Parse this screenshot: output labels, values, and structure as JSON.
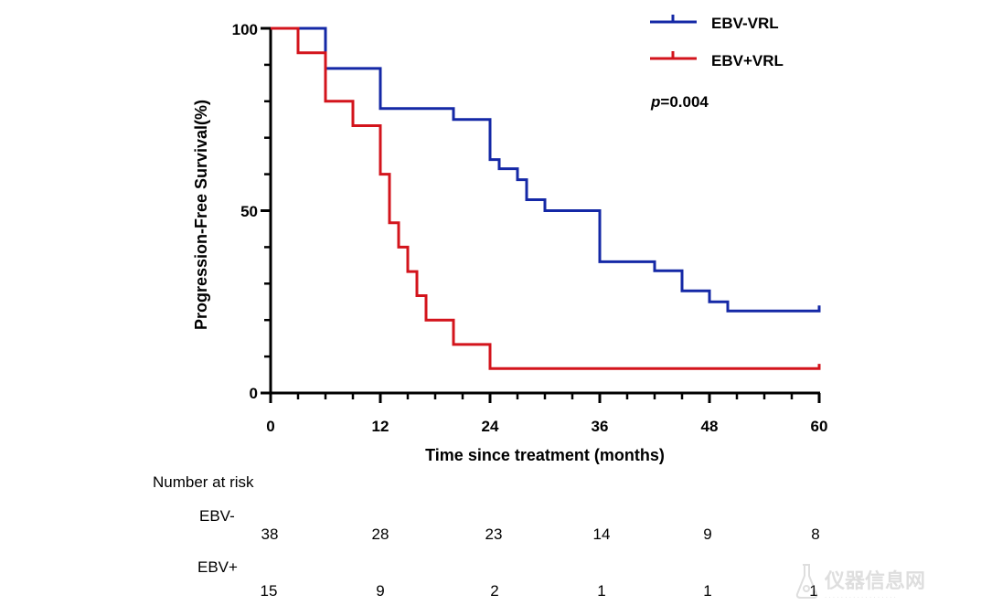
{
  "chart_data": {
    "type": "kaplan-meier step line",
    "ylabel": "Progression-Free Survival(%)",
    "xlabel": "Time since treatment (months)",
    "xlim": [
      0,
      60
    ],
    "ylim": [
      0,
      100
    ],
    "x_ticks": [
      "0",
      "12",
      "24",
      "36",
      "48",
      "60"
    ],
    "x_tick_values": [
      0,
      12,
      24,
      36,
      48,
      60
    ],
    "y_ticks": [
      "0",
      "50",
      "100"
    ],
    "y_tick_values": [
      0,
      50,
      100
    ],
    "annotation_prefix": "p",
    "annotation_value": "=0.004",
    "series": [
      {
        "name": "EBV-VRL",
        "color": "#1428a6",
        "points": [
          [
            0,
            100
          ],
          [
            6,
            100
          ],
          [
            6,
            89
          ],
          [
            12,
            89
          ],
          [
            12,
            78
          ],
          [
            20,
            78
          ],
          [
            20,
            75
          ],
          [
            24,
            75
          ],
          [
            24,
            64
          ],
          [
            25,
            64
          ],
          [
            25,
            61.5
          ],
          [
            27,
            61.5
          ],
          [
            27,
            58.5
          ],
          [
            28,
            58.5
          ],
          [
            28,
            53
          ],
          [
            30,
            53
          ],
          [
            30,
            50
          ],
          [
            36,
            50
          ],
          [
            36,
            36
          ],
          [
            42,
            36
          ],
          [
            42,
            33.5
          ],
          [
            45,
            33.5
          ],
          [
            45,
            28
          ],
          [
            48,
            28
          ],
          [
            48,
            25
          ],
          [
            50,
            25
          ],
          [
            50,
            22.5
          ],
          [
            60,
            22.5
          ],
          [
            60,
            24
          ]
        ]
      },
      {
        "name": "EBV+VRL",
        "color": "#d3141c",
        "points": [
          [
            0,
            100
          ],
          [
            3,
            100
          ],
          [
            3,
            93.3
          ],
          [
            6,
            93.3
          ],
          [
            6,
            80
          ],
          [
            9,
            80
          ],
          [
            9,
            73.3
          ],
          [
            12,
            73.3
          ],
          [
            12,
            60
          ],
          [
            13,
            60
          ],
          [
            13,
            46.7
          ],
          [
            14,
            46.7
          ],
          [
            14,
            40
          ],
          [
            15,
            40
          ],
          [
            15,
            33.3
          ],
          [
            16,
            33.3
          ],
          [
            16,
            26.7
          ],
          [
            17,
            26.7
          ],
          [
            17,
            20
          ],
          [
            20,
            20
          ],
          [
            20,
            13.3
          ],
          [
            24,
            13.3
          ],
          [
            24,
            6.7
          ],
          [
            60,
            6.7
          ],
          [
            60,
            8
          ]
        ]
      }
    ]
  },
  "risk_table": {
    "title": "Number at risk",
    "groups": [
      {
        "label": "EBV-",
        "counts": [
          "38",
          "28",
          "23",
          "14",
          "9",
          "8"
        ]
      },
      {
        "label": "EBV+",
        "counts": [
          "15",
          "9",
          "2",
          "1",
          "1",
          "1"
        ]
      }
    ]
  },
  "watermark": {
    "text": "仪器信息网"
  }
}
